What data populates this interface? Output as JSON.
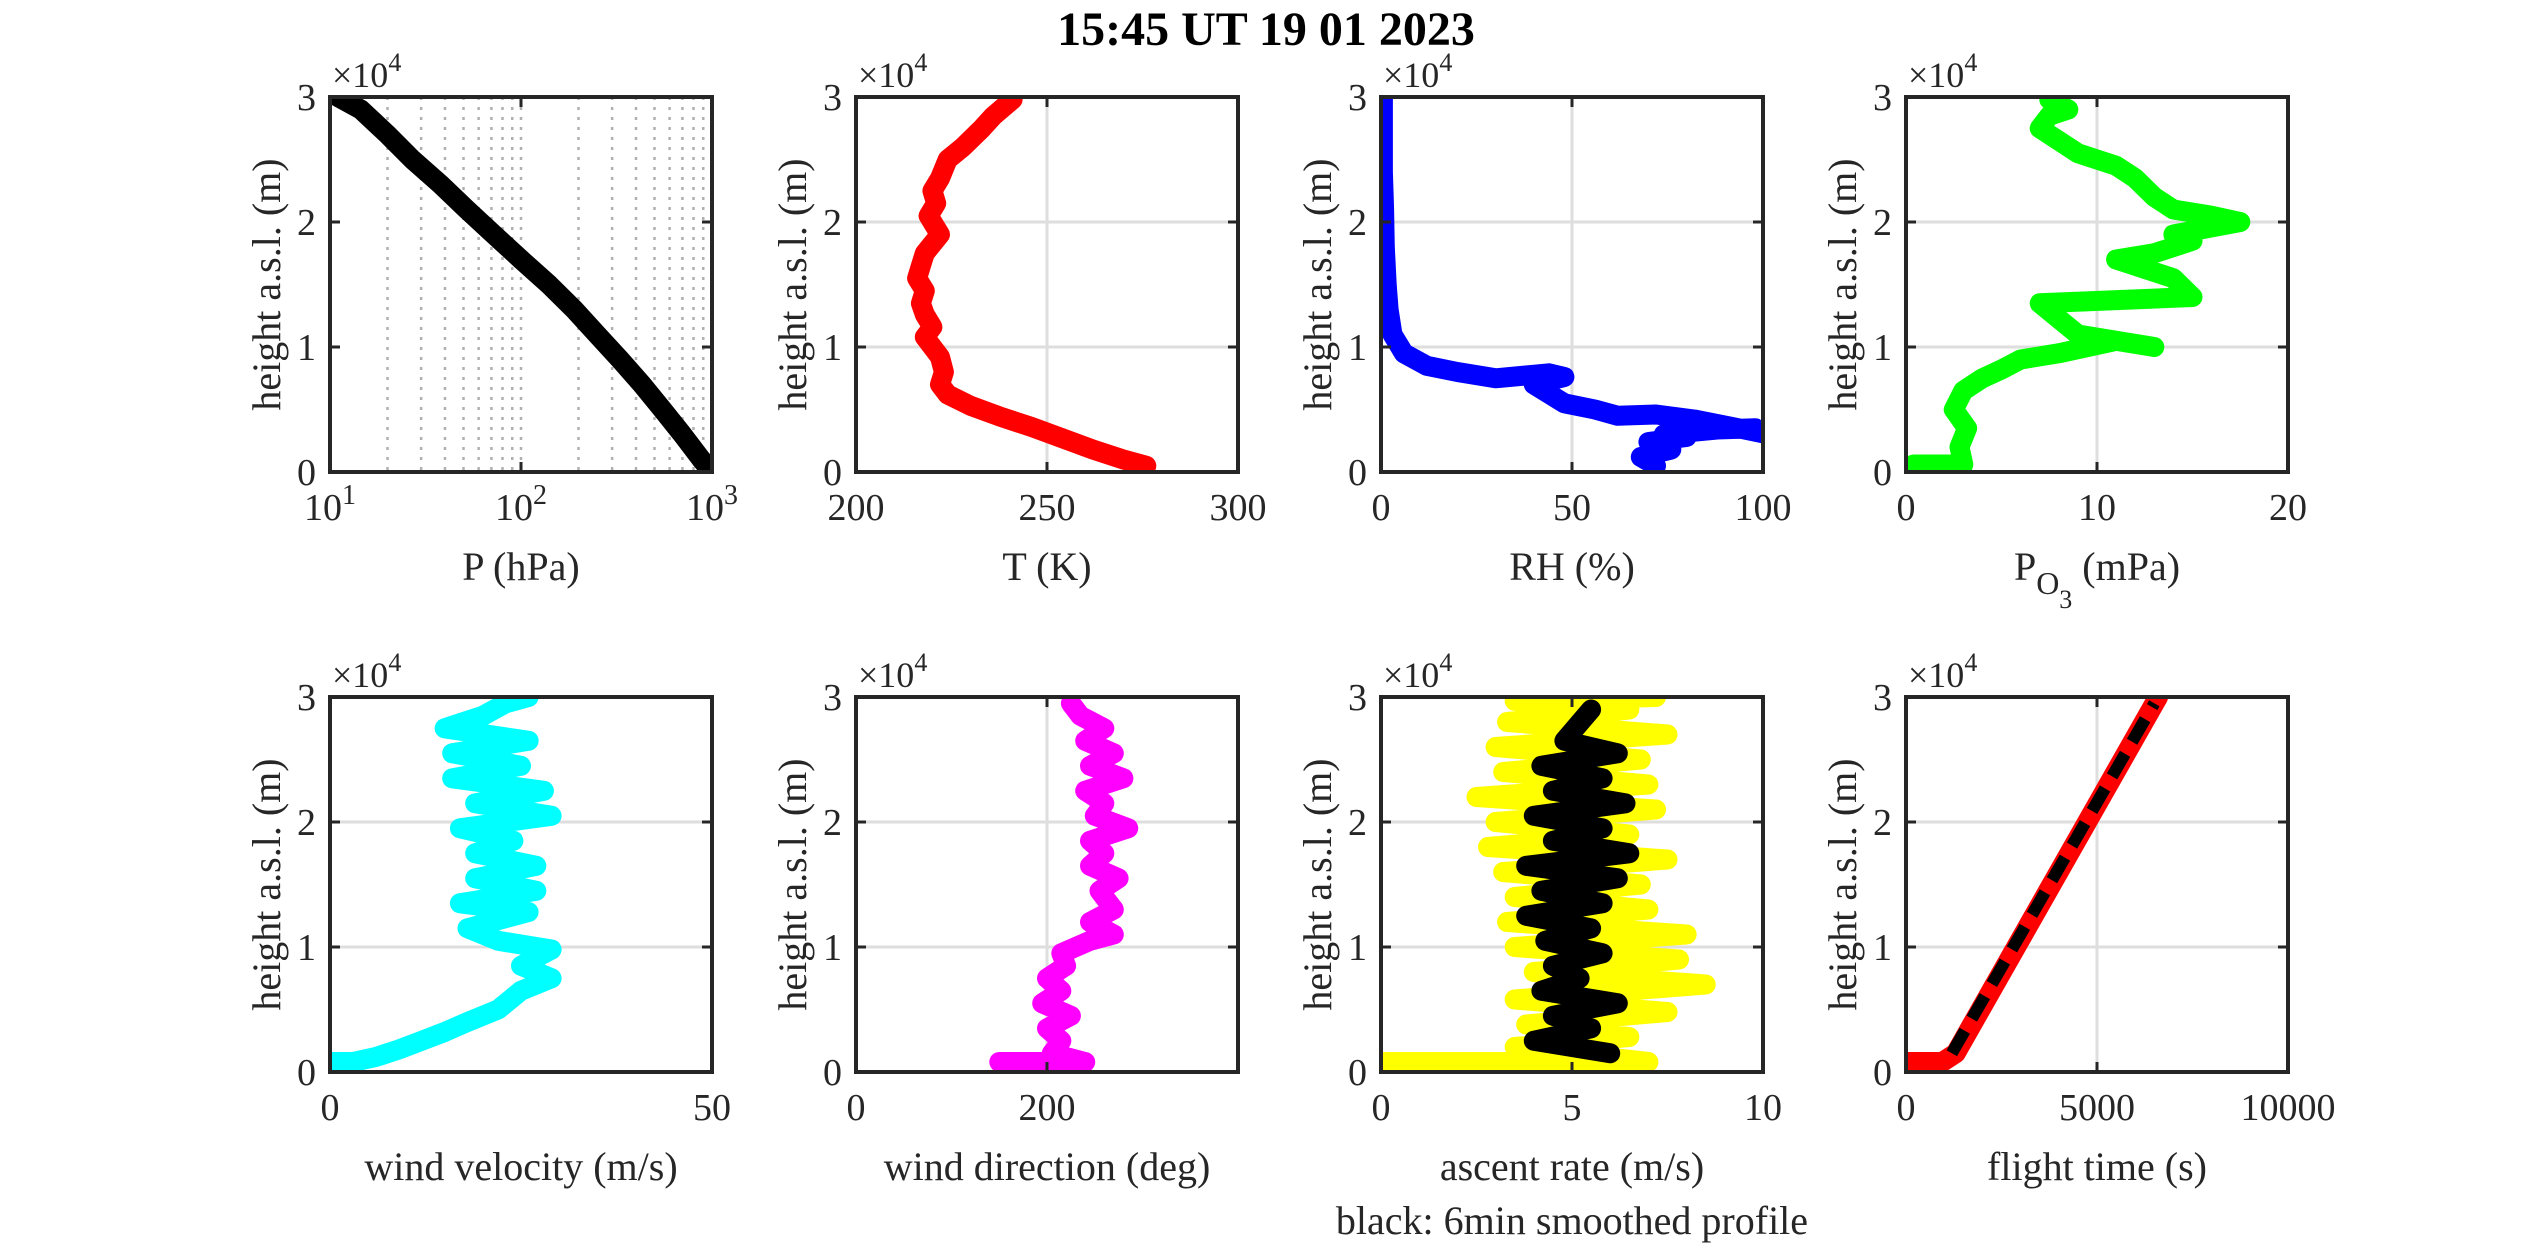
{
  "figure": {
    "title": "15:45 UT  19 01 2023"
  },
  "chart_data": [
    {
      "id": "pressure",
      "type": "line",
      "xlabel": "P (hPa)",
      "ylabel": "height a.s.l. (m)",
      "xscale": "log",
      "xlim": [
        10,
        1000
      ],
      "xticks": [
        10,
        100,
        1000
      ],
      "xtick_labels": [
        [
          "10",
          "1"
        ],
        [
          "10",
          "2"
        ],
        [
          "10",
          "3"
        ]
      ],
      "ylim": [
        0,
        30000
      ],
      "yticks": [
        0,
        10000,
        20000,
        30000
      ],
      "ytick_labels": [
        "0",
        "1",
        "2",
        "3"
      ],
      "y_exponent": "×10⁴",
      "grid": "dotted-log",
      "series": [
        {
          "color": "#000000",
          "x": [
            1000,
            880,
            700,
            550,
            430,
            330,
            250,
            190,
            140,
            100,
            72,
            52,
            38,
            27,
            20,
            14.5,
            11
          ],
          "y": [
            0,
            1000,
            3000,
            5000,
            7000,
            9000,
            11000,
            13000,
            15000,
            17000,
            19000,
            21000,
            23000,
            25000,
            27000,
            29000,
            30000
          ]
        }
      ]
    },
    {
      "id": "temperature",
      "type": "line",
      "xlabel": "T (K)",
      "ylabel": "height a.s.l. (m)",
      "xlim": [
        200,
        300
      ],
      "xticks": [
        200,
        250,
        300
      ],
      "xtick_labels": [
        "200",
        "250",
        "300"
      ],
      "ylim": [
        0,
        30000
      ],
      "yticks": [
        0,
        10000,
        20000,
        30000
      ],
      "ytick_labels": [
        "0",
        "1",
        "2",
        "3"
      ],
      "y_exponent": "×10⁴",
      "grid": "on",
      "series": [
        {
          "color": "#ff0000",
          "x": [
            276,
            270,
            262,
            254,
            246,
            238,
            230,
            224,
            222,
            223,
            222,
            220,
            218,
            220,
            218,
            217,
            218,
            216,
            217,
            218,
            222,
            219,
            221,
            220,
            222,
            224,
            228,
            233,
            236,
            241
          ],
          "y": [
            500,
            1000,
            1800,
            2700,
            3600,
            4400,
            5300,
            6200,
            7000,
            8000,
            9200,
            10000,
            10800,
            11600,
            12600,
            13500,
            14500,
            15500,
            16500,
            17500,
            19000,
            20500,
            21500,
            22500,
            23500,
            25000,
            26000,
            27500,
            28500,
            29800
          ]
        }
      ]
    },
    {
      "id": "humidity",
      "type": "line",
      "xlabel": "RH (%)",
      "ylabel": "height a.s.l. (m)",
      "xlim": [
        0,
        100
      ],
      "xticks": [
        0,
        50,
        100
      ],
      "xtick_labels": [
        "0",
        "50",
        "100"
      ],
      "ylim": [
        0,
        30000
      ],
      "yticks": [
        0,
        10000,
        20000,
        30000
      ],
      "ytick_labels": [
        "0",
        "1",
        "2",
        "3"
      ],
      "y_exponent": "×10⁴",
      "grid": "on",
      "series": [
        {
          "color": "#0000ff",
          "x": [
            72,
            68,
            76,
            70,
            80,
            74,
            88,
            98,
            100,
            92,
            82,
            72,
            62,
            56,
            48,
            40,
            48,
            44,
            30,
            20,
            12,
            6,
            3,
            2,
            1.5,
            1,
            0.8,
            0.5,
            0.5,
            0.5
          ],
          "y": [
            500,
            1200,
            1800,
            2400,
            2800,
            3000,
            3400,
            3500,
            3100,
            3600,
            4200,
            4600,
            4500,
            5000,
            5500,
            7000,
            7600,
            7900,
            7500,
            8000,
            8500,
            9500,
            11000,
            13000,
            15000,
            18000,
            21000,
            24000,
            27000,
            30000
          ]
        }
      ]
    },
    {
      "id": "ozone",
      "type": "line",
      "xlabel": "P",
      "xlabel_sub": "O",
      "xlabel_subsub": "3",
      "xlabel_rest": "(mPa)",
      "ylabel": "height a.s.l. (m)",
      "xlim": [
        0,
        20
      ],
      "xticks": [
        0,
        10,
        20
      ],
      "xtick_labels": [
        "0",
        "10",
        "20"
      ],
      "ylim": [
        0,
        30000
      ],
      "yticks": [
        0,
        10000,
        20000,
        30000
      ],
      "ytick_labels": [
        "0",
        "1",
        "2",
        "3"
      ],
      "y_exponent": "×10⁴",
      "grid": "on",
      "series": [
        {
          "color": "#00ff00",
          "x": [
            0.4,
            3,
            2.8,
            3.2,
            2.5,
            3,
            4,
            5,
            6,
            8,
            11,
            13,
            9,
            7,
            15,
            14,
            11,
            13,
            15,
            14,
            17.5,
            16,
            14,
            13,
            12,
            11,
            9,
            8,
            7,
            7.5,
            8.5,
            7.5
          ],
          "y": [
            600,
            600,
            2000,
            3500,
            5000,
            6500,
            7500,
            8200,
            9000,
            9500,
            10500,
            10000,
            11000,
            13500,
            14000,
            15500,
            17000,
            17500,
            18500,
            19000,
            20000,
            20500,
            21000,
            22000,
            23500,
            24500,
            25500,
            26500,
            27500,
            28500,
            29000,
            29800
          ]
        }
      ]
    },
    {
      "id": "wind-velocity",
      "type": "line",
      "xlabel": "wind velocity (m/s)",
      "ylabel": "height a.s.l. (m)",
      "xlim": [
        0,
        50
      ],
      "xticks": [
        0,
        50
      ],
      "xtick_labels": [
        "0",
        "50"
      ],
      "ylim": [
        0,
        30000
      ],
      "yticks": [
        0,
        10000,
        20000,
        30000
      ],
      "ytick_labels": [
        "0",
        "1",
        "2",
        "3"
      ],
      "y_exponent": "×10⁴",
      "grid": "on",
      "series": [
        {
          "color": "#00ffff",
          "x": [
            0,
            3,
            6,
            9,
            12,
            15,
            18,
            22,
            25,
            29,
            25,
            29,
            22,
            18,
            26,
            17,
            27,
            19,
            27,
            19,
            24,
            17,
            29,
            19,
            28,
            16,
            25,
            16,
            26,
            15,
            20,
            23,
            26
          ],
          "y": [
            800,
            800,
            1200,
            1800,
            2500,
            3200,
            4000,
            5000,
            6500,
            7500,
            8500,
            9800,
            10500,
            11500,
            12800,
            13500,
            14500,
            15500,
            16500,
            17500,
            18500,
            19500,
            20500,
            21500,
            22500,
            23500,
            24500,
            25500,
            26500,
            27500,
            28500,
            29500,
            30000
          ]
        }
      ]
    },
    {
      "id": "wind-direction",
      "type": "line",
      "xlabel": "wind direction (deg)",
      "ylabel": "height a.s.l. (m)",
      "xlim": [
        0,
        400
      ],
      "xticks": [
        0,
        200
      ],
      "xtick_labels": [
        "0",
        "200"
      ],
      "ylim": [
        0,
        30000
      ],
      "yticks": [
        0,
        10000,
        20000,
        30000
      ],
      "ytick_labels": [
        "0",
        "1",
        "2",
        "3"
      ],
      "y_exponent": "×10⁴",
      "grid": "on",
      "series": [
        {
          "color": "#ff00ff",
          "x": [
            150,
            240,
            205,
            215,
            200,
            225,
            195,
            215,
            200,
            220,
            215,
            245,
            270,
            245,
            270,
            255,
            275,
            245,
            260,
            245,
            285,
            250,
            260,
            240,
            280,
            245,
            270,
            240,
            260,
            235,
            225
          ],
          "y": [
            800,
            800,
            1500,
            2500,
            3500,
            4500,
            5500,
            6500,
            7500,
            8500,
            9500,
            10500,
            11000,
            12000,
            13000,
            14500,
            15500,
            16500,
            17500,
            18500,
            19500,
            20500,
            21500,
            22500,
            23500,
            24500,
            25500,
            26500,
            27500,
            28500,
            29500
          ]
        }
      ]
    },
    {
      "id": "ascent-rate",
      "type": "line",
      "xlabel": "ascent rate (m/s)",
      "xlabel2": "black: 6min smoothed profile",
      "ylabel": "height a.s.l. (m)",
      "xlim": [
        0,
        10
      ],
      "xticks": [
        0,
        5,
        10
      ],
      "xtick_labels": [
        "0",
        "5",
        "10"
      ],
      "ylim": [
        0,
        30000
      ],
      "yticks": [
        0,
        10000,
        20000,
        30000
      ],
      "ytick_labels": [
        "0",
        "1",
        "2",
        "3"
      ],
      "y_exponent": "×10⁴",
      "grid": "on",
      "series": [
        {
          "color": "#ffff00",
          "x": [
            0.1,
            7,
            3.5,
            6.5,
            3.8,
            7.5,
            3.5,
            8.5,
            4,
            7.8,
            3.5,
            8,
            3.3,
            7,
            3.5,
            6.8,
            3.2,
            7.5,
            2.8,
            6.5,
            3,
            7.2,
            2.5,
            7,
            3.2,
            6.8,
            3,
            7.5,
            3.3,
            6.5,
            3.5,
            7.2
          ],
          "y": [
            800,
            800,
            2000,
            2800,
            3800,
            4800,
            5800,
            7000,
            8000,
            9000,
            10000,
            11000,
            12000,
            13000,
            14000,
            15000,
            16000,
            17000,
            18000,
            19000,
            20000,
            21000,
            22000,
            23000,
            24000,
            25000,
            26000,
            27000,
            28000,
            29000,
            29700,
            30000
          ]
        },
        {
          "color": "#000000",
          "x": [
            6,
            4,
            5.5,
            4.5,
            6.2,
            4.2,
            5.2,
            4.5,
            5.8,
            4.3,
            5.5,
            3.8,
            5.8,
            4.2,
            6.2,
            3.8,
            6.5,
            4.5,
            5.8,
            4,
            6.4,
            4.5,
            5.8,
            4.2,
            6.2,
            4.8,
            5.5
          ],
          "y": [
            1500,
            2500,
            3500,
            4500,
            5500,
            6500,
            7500,
            8500,
            9500,
            10500,
            11500,
            12500,
            13500,
            14500,
            15500,
            16500,
            17500,
            18500,
            19500,
            20500,
            21500,
            22500,
            23500,
            24500,
            25500,
            26500,
            29000
          ]
        }
      ]
    },
    {
      "id": "flight-time",
      "type": "line",
      "xlabel": "flight time (s)",
      "ylabel": "height a.s.l. (m)",
      "xlim": [
        0,
        10000
      ],
      "xticks": [
        0,
        5000,
        10000
      ],
      "xtick_labels": [
        "0",
        "5000",
        "10000"
      ],
      "ylim": [
        0,
        30000
      ],
      "yticks": [
        0,
        10000,
        20000,
        30000
      ],
      "ytick_labels": [
        "0",
        "1",
        "2",
        "3"
      ],
      "y_exponent": "×10⁴",
      "grid": "on",
      "series": [
        {
          "color": "#ff0000",
          "x": [
            0,
            950,
            1300,
            6600
          ],
          "y": [
            800,
            800,
            1500,
            30000
          ]
        },
        {
          "color": "#000000",
          "dash": true,
          "x": [
            1200,
            6500
          ],
          "y": [
            1500,
            29500
          ]
        }
      ]
    }
  ]
}
